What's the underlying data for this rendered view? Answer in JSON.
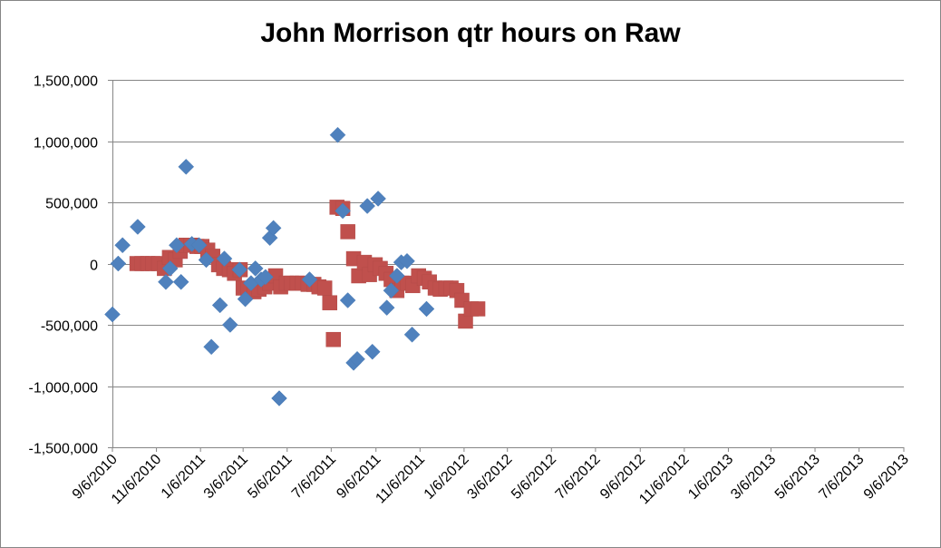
{
  "chart_data": {
    "type": "scatter",
    "title": "John Morrison qtr hours on Raw",
    "xlabel": "",
    "ylabel": "",
    "x_units": "Excel date serial (days)",
    "xlim": [
      40427,
      41523
    ],
    "ylim": [
      -1500000,
      1500000
    ],
    "grid": "horizontal major gridlines",
    "legend": "none",
    "x_ticks": [
      {
        "value": 40427,
        "label": "9/6/2010"
      },
      {
        "value": 40488,
        "label": "11/6/2010"
      },
      {
        "value": 40549,
        "label": "1/6/2011"
      },
      {
        "value": 40608,
        "label": "3/6/2011"
      },
      {
        "value": 40669,
        "label": "5/6/2011"
      },
      {
        "value": 40730,
        "label": "7/6/2011"
      },
      {
        "value": 40792,
        "label": "9/6/2011"
      },
      {
        "value": 40853,
        "label": "11/6/2011"
      },
      {
        "value": 40914,
        "label": "1/6/2012"
      },
      {
        "value": 40974,
        "label": "3/6/2012"
      },
      {
        "value": 41035,
        "label": "5/6/2012"
      },
      {
        "value": 41096,
        "label": "7/6/2012"
      },
      {
        "value": 41158,
        "label": "9/6/2012"
      },
      {
        "value": 41219,
        "label": "11/6/2012"
      },
      {
        "value": 41280,
        "label": "1/6/2013"
      },
      {
        "value": 41339,
        "label": "3/6/2013"
      },
      {
        "value": 41400,
        "label": "5/6/2013"
      },
      {
        "value": 41461,
        "label": "7/6/2013"
      },
      {
        "value": 41523,
        "label": "9/6/2013"
      }
    ],
    "y_ticks": [
      {
        "value": 1500000,
        "label": "1,500,000"
      },
      {
        "value": 1000000,
        "label": "1,000,000"
      },
      {
        "value": 500000,
        "label": "500,000"
      },
      {
        "value": 0,
        "label": "0"
      },
      {
        "value": -500000,
        "label": "-500,000"
      },
      {
        "value": -1000000,
        "label": "-1,000,000"
      },
      {
        "value": -1500000,
        "label": "-1,500,000"
      }
    ],
    "series": [
      {
        "marker": "diamond",
        "color": "#4F81BD",
        "points": [
          [
            40427,
            -415000
          ],
          [
            40435,
            0
          ],
          [
            40441,
            150000
          ],
          [
            40462,
            300000
          ],
          [
            40501,
            -150000
          ],
          [
            40507,
            -40000
          ],
          [
            40516,
            150000
          ],
          [
            40522,
            -150000
          ],
          [
            40529,
            790000
          ],
          [
            40537,
            160000
          ],
          [
            40547,
            150000
          ],
          [
            40557,
            30000
          ],
          [
            40564,
            -680000
          ],
          [
            40576,
            -340000
          ],
          [
            40582,
            40000
          ],
          [
            40590,
            -500000
          ],
          [
            40603,
            -50000
          ],
          [
            40611,
            -290000
          ],
          [
            40619,
            -160000
          ],
          [
            40625,
            -40000
          ],
          [
            40633,
            -130000
          ],
          [
            40639,
            -110000
          ],
          [
            40645,
            210000
          ],
          [
            40650,
            290000
          ],
          [
            40658,
            -1100000
          ],
          [
            40700,
            -130000
          ],
          [
            40739,
            1050000
          ],
          [
            40746,
            430000
          ],
          [
            40753,
            -300000
          ],
          [
            40761,
            -810000
          ],
          [
            40766,
            -780000
          ],
          [
            40780,
            470000
          ],
          [
            40787,
            -720000
          ],
          [
            40795,
            530000
          ],
          [
            40807,
            -360000
          ],
          [
            40813,
            -220000
          ],
          [
            40821,
            -100000
          ],
          [
            40827,
            10000
          ],
          [
            40835,
            20000
          ],
          [
            40842,
            -580000
          ],
          [
            40862,
            -370000
          ]
        ]
      },
      {
        "marker": "square",
        "color": "#C0504D",
        "points": [
          [
            40461,
            0
          ],
          [
            40468,
            0
          ],
          [
            40476,
            0
          ],
          [
            40483,
            0
          ],
          [
            40491,
            0
          ],
          [
            40499,
            -40000
          ],
          [
            40506,
            50000
          ],
          [
            40514,
            30000
          ],
          [
            40521,
            100000
          ],
          [
            40529,
            150000
          ],
          [
            40536,
            150000
          ],
          [
            40544,
            140000
          ],
          [
            40551,
            140000
          ],
          [
            40559,
            110000
          ],
          [
            40566,
            60000
          ],
          [
            40574,
            -10000
          ],
          [
            40581,
            -40000
          ],
          [
            40589,
            -50000
          ],
          [
            40596,
            -80000
          ],
          [
            40604,
            -50000
          ],
          [
            40608,
            -200000
          ],
          [
            40615,
            -210000
          ],
          [
            40623,
            -230000
          ],
          [
            40630,
            -210000
          ],
          [
            40638,
            -190000
          ],
          [
            40645,
            -160000
          ],
          [
            40653,
            -100000
          ],
          [
            40660,
            -190000
          ],
          [
            40668,
            -160000
          ],
          [
            40675,
            -160000
          ],
          [
            40683,
            -160000
          ],
          [
            40690,
            -160000
          ],
          [
            40698,
            -170000
          ],
          [
            40706,
            -170000
          ],
          [
            40713,
            -190000
          ],
          [
            40721,
            -200000
          ],
          [
            40728,
            -320000
          ],
          [
            40733,
            -620000
          ],
          [
            40738,
            460000
          ],
          [
            40746,
            450000
          ],
          [
            40753,
            260000
          ],
          [
            40761,
            40000
          ],
          [
            40768,
            -100000
          ],
          [
            40776,
            10000
          ],
          [
            40783,
            -90000
          ],
          [
            40791,
            -10000
          ],
          [
            40798,
            -40000
          ],
          [
            40806,
            -80000
          ],
          [
            40813,
            -130000
          ],
          [
            40821,
            -220000
          ],
          [
            40828,
            -160000
          ],
          [
            40836,
            -160000
          ],
          [
            40843,
            -180000
          ],
          [
            40851,
            -100000
          ],
          [
            40859,
            -120000
          ],
          [
            40866,
            -150000
          ],
          [
            40874,
            -200000
          ],
          [
            40881,
            -210000
          ],
          [
            40889,
            -200000
          ],
          [
            40896,
            -200000
          ],
          [
            40904,
            -220000
          ],
          [
            40911,
            -300000
          ],
          [
            40916,
            -470000
          ],
          [
            40924,
            -370000
          ],
          [
            40933,
            -370000
          ]
        ]
      }
    ]
  }
}
